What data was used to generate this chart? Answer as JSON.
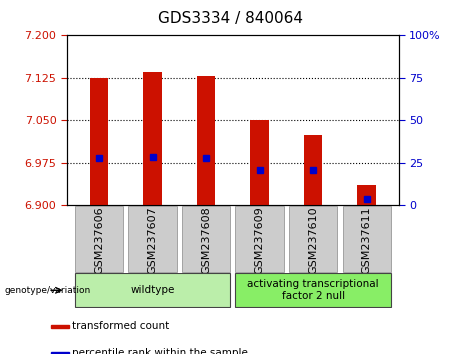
{
  "title": "GDS3334 / 840064",
  "categories": [
    "GSM237606",
    "GSM237607",
    "GSM237608",
    "GSM237609",
    "GSM237610",
    "GSM237611"
  ],
  "bar_bottoms": [
    6.9,
    6.9,
    6.9,
    6.9,
    6.9,
    6.9
  ],
  "bar_tops": [
    7.125,
    7.135,
    7.128,
    7.051,
    7.025,
    6.936
  ],
  "blue_positions": [
    6.984,
    6.986,
    6.984,
    6.963,
    6.962,
    6.912
  ],
  "ylim_left": [
    6.9,
    7.2
  ],
  "ylim_right": [
    0,
    100
  ],
  "yticks_left": [
    6.9,
    6.975,
    7.05,
    7.125,
    7.2
  ],
  "yticks_right": [
    0,
    25,
    50,
    75,
    100
  ],
  "bar_color": "#cc1100",
  "blue_color": "#0000cc",
  "bar_width": 0.35,
  "groups": [
    {
      "label": "wildtype",
      "indices": [
        0,
        1,
        2
      ],
      "color": "#bbeeaa"
    },
    {
      "label": "activating transcriptional\nfactor 2 null",
      "indices": [
        3,
        4,
        5
      ],
      "color": "#88ee66"
    }
  ],
  "legend_items": [
    {
      "label": "transformed count",
      "color": "#cc1100"
    },
    {
      "label": "percentile rank within the sample",
      "color": "#0000cc"
    }
  ],
  "title_fontsize": 11,
  "tick_fontsize": 8,
  "label_fontsize": 8,
  "xtick_bg": "#cccccc"
}
